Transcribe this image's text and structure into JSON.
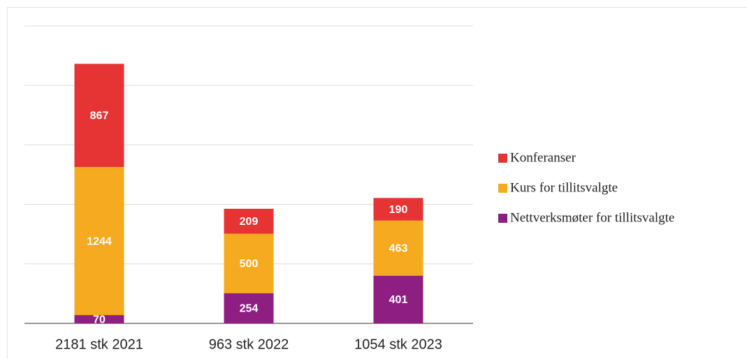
{
  "chart_data": {
    "type": "stacked_bar",
    "categories": [
      "2181 stk 2021",
      "963 stk 2022",
      "1054 stk 2023"
    ],
    "series": [
      {
        "name": "Nettverksmøter for tillitsvalgte",
        "color": "#8e1e82",
        "values": [
          70,
          254,
          401
        ]
      },
      {
        "name": "Kurs for tillitsvalgte",
        "color": "#f5aa1f",
        "values": [
          1244,
          500,
          463
        ]
      },
      {
        "name": "Konferanser",
        "color": "#e63333",
        "values": [
          867,
          209,
          190
        ]
      }
    ],
    "ylim": [
      0,
      2500
    ],
    "yticks": [
      0,
      500,
      1000,
      1500,
      2000,
      2500
    ],
    "grid": true
  }
}
